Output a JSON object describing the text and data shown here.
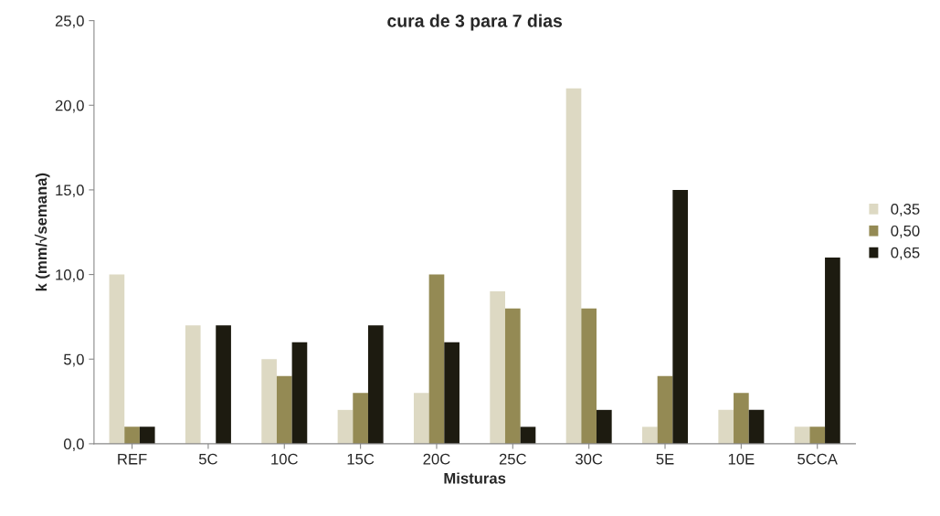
{
  "chart_data": {
    "type": "bar",
    "title": "cura de 3 para 7 dias",
    "xlabel": "Misturas",
    "ylabel": "k (mm/√semana)",
    "categories": [
      "REF",
      "5C",
      "10C",
      "15C",
      "20C",
      "25C",
      "30C",
      "5E",
      "10E",
      "5CCA"
    ],
    "series": [
      {
        "name": "0,35",
        "color": "#ddd9c3",
        "values": [
          10,
          7,
          5,
          2,
          3,
          9,
          21,
          1,
          2,
          1
        ]
      },
      {
        "name": "0,50",
        "color": "#948a54",
        "values": [
          1,
          null,
          4,
          3,
          10,
          8,
          8,
          4,
          3,
          1
        ]
      },
      {
        "name": "0,65",
        "color": "#1d1b10",
        "values": [
          1,
          7,
          6,
          7,
          6,
          1,
          2,
          15,
          2,
          11
        ]
      }
    ],
    "ylim": [
      0,
      25
    ],
    "yticks": [
      {
        "value": 0,
        "label": "0,0"
      },
      {
        "value": 5,
        "label": "5,0"
      },
      {
        "value": 10,
        "label": "10,0"
      },
      {
        "value": 15,
        "label": "15,0"
      },
      {
        "value": 20,
        "label": "20,0"
      },
      {
        "value": 25,
        "label": "25,0"
      }
    ],
    "grid": false,
    "legend": "right"
  }
}
